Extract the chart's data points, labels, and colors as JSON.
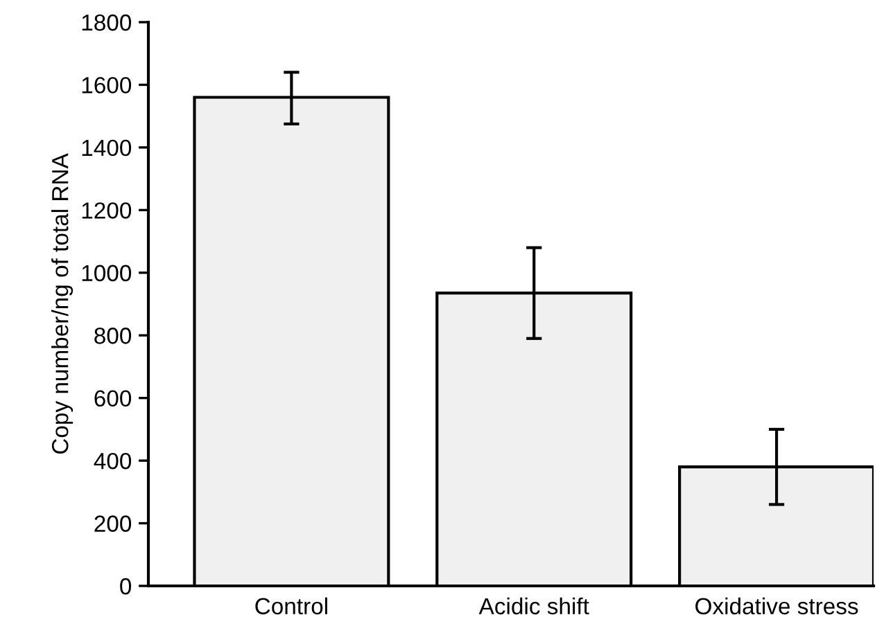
{
  "chart_data": {
    "type": "bar",
    "ylabel": "Copy number/ng of total RNA",
    "categories": [
      "Control",
      "Acidic shift",
      "Oxidative stress"
    ],
    "values": [
      1560,
      935,
      380
    ],
    "errors": [
      [
        1475,
        1640
      ],
      [
        790,
        1080
      ],
      [
        260,
        500
      ]
    ],
    "color": "#f0f0f0",
    "ylim": [
      0,
      1800
    ],
    "yticks": [
      0,
      200,
      400,
      600,
      800,
      1000,
      1200,
      1400,
      1600,
      1800
    ],
    "grid": false
  }
}
